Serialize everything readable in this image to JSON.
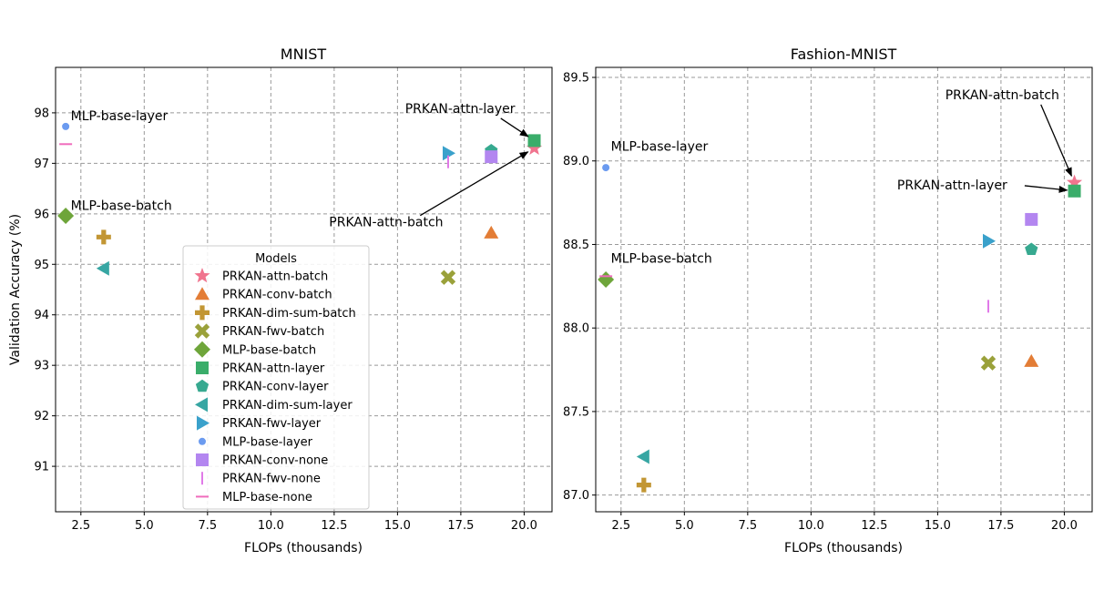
{
  "chart_data": [
    {
      "type": "scatter",
      "title": "MNIST",
      "xlabel": "FLOPs (thousands)",
      "ylabel": "Validation Accuracy (%)",
      "xlim": [
        1.5,
        21.1
      ],
      "ylim": [
        90.1,
        98.9
      ],
      "xticks": [
        2.5,
        5.0,
        7.5,
        10.0,
        12.5,
        15.0,
        17.5,
        20.0
      ],
      "xtick_labels": [
        "2.5",
        "5.0",
        "7.5",
        "10.0",
        "12.5",
        "15.0",
        "17.5",
        "20.0"
      ],
      "yticks": [
        91,
        92,
        93,
        94,
        95,
        96,
        97,
        98
      ],
      "ytick_labels": [
        "91",
        "92",
        "93",
        "94",
        "95",
        "96",
        "97",
        "98"
      ],
      "grid": true,
      "legend": {
        "title": "Models",
        "placement": "bottom-center",
        "entries": [
          "PRKAN-attn-batch",
          "PRKAN-conv-batch",
          "PRKAN-dim-sum-batch",
          "PRKAN-fwv-batch",
          "MLP-base-batch",
          "PRKAN-attn-layer",
          "PRKAN-conv-layer",
          "PRKAN-dim-sum-layer",
          "PRKAN-fwv-layer",
          "MLP-base-layer",
          "PRKAN-conv-none",
          "PRKAN-fwv-none",
          "MLP-base-none"
        ]
      },
      "points": [
        {
          "model": "PRKAN-attn-batch",
          "x": 20.4,
          "y": 97.3
        },
        {
          "model": "PRKAN-conv-batch",
          "x": 18.7,
          "y": 95.62
        },
        {
          "model": "PRKAN-dim-sum-batch",
          "x": 3.4,
          "y": 95.54
        },
        {
          "model": "PRKAN-fwv-batch",
          "x": 17.0,
          "y": 94.74
        },
        {
          "model": "MLP-base-batch",
          "x": 1.9,
          "y": 95.96
        },
        {
          "model": "PRKAN-attn-layer",
          "x": 20.4,
          "y": 97.45
        },
        {
          "model": "PRKAN-conv-layer",
          "x": 18.7,
          "y": 97.25
        },
        {
          "model": "PRKAN-dim-sum-layer",
          "x": 3.4,
          "y": 94.92
        },
        {
          "model": "PRKAN-fwv-layer",
          "x": 17.0,
          "y": 97.2
        },
        {
          "model": "MLP-base-layer",
          "x": 1.9,
          "y": 97.73
        },
        {
          "model": "PRKAN-conv-none",
          "x": 18.7,
          "y": 97.13
        },
        {
          "model": "PRKAN-fwv-none",
          "x": 17.0,
          "y": 97.03
        },
        {
          "model": "MLP-base-none",
          "x": 1.9,
          "y": 97.38
        }
      ],
      "annotations": [
        {
          "text": "MLP-base-layer",
          "x": 1.9,
          "y": 97.73,
          "tx": 2.1,
          "ty": 97.85,
          "arrow": false
        },
        {
          "text": "MLP-base-batch",
          "x": 1.9,
          "y": 95.96,
          "tx": 2.1,
          "ty": 96.08,
          "arrow": false
        },
        {
          "text": "PRKAN-attn-layer",
          "x": 20.4,
          "y": 97.45,
          "tx": 15.3,
          "ty": 98.0,
          "arrow": true
        },
        {
          "text": "PRKAN-attn-batch",
          "x": 20.4,
          "y": 97.3,
          "tx": 12.3,
          "ty": 95.75,
          "arrow": true
        }
      ]
    },
    {
      "type": "scatter",
      "title": "Fashion-MNIST",
      "xlabel": "FLOPs (thousands)",
      "ylabel": "",
      "xlim": [
        1.5,
        21.1
      ],
      "ylim": [
        86.9,
        89.56
      ],
      "xticks": [
        2.5,
        5.0,
        7.5,
        10.0,
        12.5,
        15.0,
        17.5,
        20.0
      ],
      "xtick_labels": [
        "2.5",
        "5.0",
        "7.5",
        "10.0",
        "12.5",
        "15.0",
        "17.5",
        "20.0"
      ],
      "yticks": [
        87.0,
        87.5,
        88.0,
        88.5,
        89.0,
        89.5
      ],
      "ytick_labels": [
        "87.0",
        "87.5",
        "88.0",
        "88.5",
        "89.0",
        "89.5"
      ],
      "grid": true,
      "points": [
        {
          "model": "PRKAN-attn-batch",
          "x": 20.4,
          "y": 88.87
        },
        {
          "model": "PRKAN-conv-batch",
          "x": 18.7,
          "y": 87.8
        },
        {
          "model": "PRKAN-dim-sum-batch",
          "x": 3.4,
          "y": 87.06
        },
        {
          "model": "PRKAN-fwv-batch",
          "x": 17.0,
          "y": 87.79
        },
        {
          "model": "MLP-base-batch",
          "x": 1.9,
          "y": 88.29
        },
        {
          "model": "PRKAN-attn-layer",
          "x": 20.4,
          "y": 88.82
        },
        {
          "model": "PRKAN-conv-layer",
          "x": 18.7,
          "y": 88.47
        },
        {
          "model": "PRKAN-dim-sum-layer",
          "x": 3.4,
          "y": 87.23
        },
        {
          "model": "PRKAN-fwv-layer",
          "x": 17.0,
          "y": 88.52
        },
        {
          "model": "MLP-base-layer",
          "x": 1.9,
          "y": 88.96
        },
        {
          "model": "PRKAN-conv-none",
          "x": 18.7,
          "y": 88.65
        },
        {
          "model": "PRKAN-fwv-none",
          "x": 17.0,
          "y": 88.13
        },
        {
          "model": "MLP-base-none",
          "x": 1.9,
          "y": 88.31
        }
      ],
      "annotations": [
        {
          "text": "MLP-base-layer",
          "x": 1.9,
          "y": 88.96,
          "tx": 2.1,
          "ty": 89.06,
          "arrow": false
        },
        {
          "text": "MLP-base-batch",
          "x": 1.9,
          "y": 88.29,
          "tx": 2.1,
          "ty": 88.39,
          "arrow": false
        },
        {
          "text": "PRKAN-attn-batch",
          "x": 20.4,
          "y": 88.87,
          "tx": 15.3,
          "ty": 89.37,
          "arrow": true
        },
        {
          "text": "PRKAN-attn-layer",
          "x": 20.4,
          "y": 88.82,
          "tx": 13.4,
          "ty": 88.83,
          "arrow": true
        }
      ]
    }
  ],
  "styles": {
    "PRKAN-attn-batch": {
      "marker": "star",
      "color": "#f0748e"
    },
    "PRKAN-conv-batch": {
      "marker": "triangle-up",
      "color": "#e37d36"
    },
    "PRKAN-dim-sum-batch": {
      "marker": "plus-thick",
      "color": "#c29634"
    },
    "PRKAN-fwv-batch": {
      "marker": "x-thick",
      "color": "#9aa13a"
    },
    "MLP-base-batch": {
      "marker": "diamond",
      "color": "#6ea53a"
    },
    "PRKAN-attn-layer": {
      "marker": "square",
      "color": "#3aad6a"
    },
    "PRKAN-conv-layer": {
      "marker": "pentagon",
      "color": "#37a990"
    },
    "PRKAN-dim-sum-layer": {
      "marker": "triangle-left",
      "color": "#37a6a3"
    },
    "PRKAN-fwv-layer": {
      "marker": "triangle-right",
      "color": "#3aa1cb"
    },
    "MLP-base-layer": {
      "marker": "circle",
      "color": "#6b9bf0"
    },
    "PRKAN-conv-none": {
      "marker": "square",
      "color": "#b386f0"
    },
    "PRKAN-fwv-none": {
      "marker": "vline",
      "color": "#e07ae8"
    },
    "MLP-base-none": {
      "marker": "hline",
      "color": "#f06cbc"
    }
  }
}
